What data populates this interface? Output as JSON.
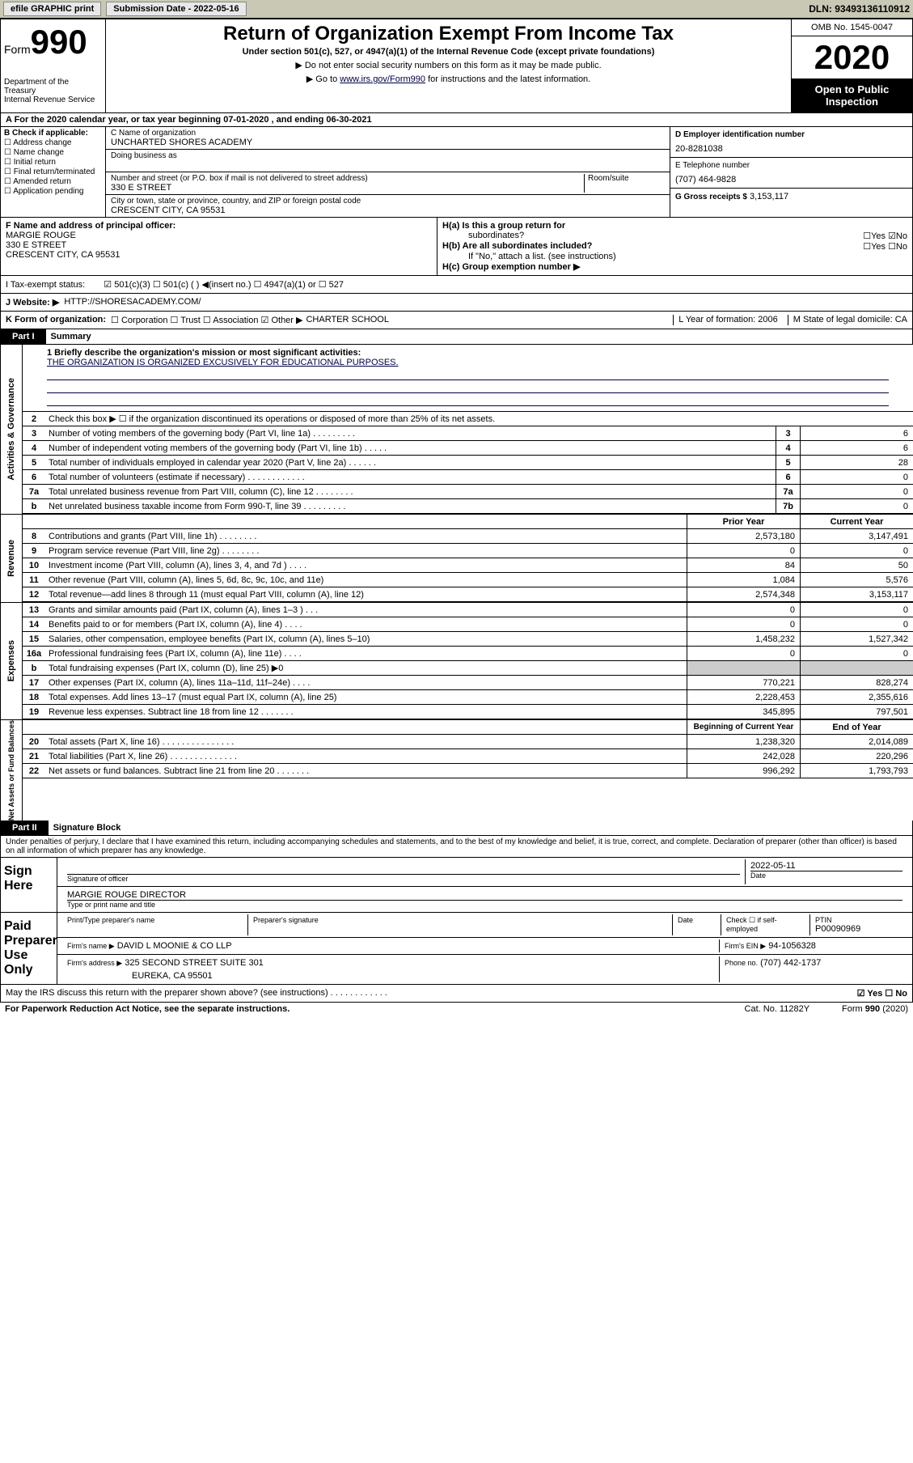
{
  "topbar": {
    "efile": "efile GRAPHIC print",
    "sub_label": "Submission Date - 2022-05-16",
    "dln": "DLN: 93493136110912"
  },
  "header": {
    "form_prefix": "Form",
    "form_num": "990",
    "dept1": "Department of the Treasury",
    "dept2": "Internal Revenue Service",
    "title": "Return of Organization Exempt From Income Tax",
    "under": "Under section 501(c), 527, or 4947(a)(1) of the Internal Revenue Code (except private foundations)",
    "note1": "▶ Do not enter social security numbers on this form as it may be made public.",
    "note2_pre": "▶ Go to ",
    "note2_link": "www.irs.gov/Form990",
    "note2_post": " for instructions and the latest information.",
    "omb": "OMB No. 1545-0047",
    "year": "2020",
    "open": "Open to Public Inspection"
  },
  "period": "A For the 2020 calendar year, or tax year beginning 07-01-2020    , and ending 06-30-2021",
  "colB": {
    "hdr": "B Check if applicable:",
    "opts": [
      "☐ Address change",
      "☐ Name change",
      "☐ Initial return",
      "☐ Final return/terminated",
      "☐ Amended return",
      "☐ Application pending"
    ]
  },
  "colC": {
    "name_lbl": "C Name of organization",
    "name": "UNCHARTED SHORES ACADEMY",
    "dba_lbl": "Doing business as",
    "addr_lbl": "Number and street (or P.O. box if mail is not delivered to street address)",
    "room_lbl": "Room/suite",
    "addr": "330 E STREET",
    "city_lbl": "City or town, state or province, country, and ZIP or foreign postal code",
    "city": "CRESCENT CITY, CA  95531"
  },
  "colD": {
    "ein_lbl": "D Employer identification number",
    "ein": "20-8281038",
    "tel_lbl": "E Telephone number",
    "tel": "(707) 464-9828",
    "gross_lbl": "G Gross receipts $",
    "gross": "3,153,117"
  },
  "f": {
    "lbl": "F  Name and address of principal officer:",
    "name": "MARGIE ROUGE",
    "addr1": "330 E STREET",
    "addr2": "CRESCENT CITY, CA  95531"
  },
  "h": {
    "a": "H(a)  Is this a group return for",
    "a2": "subordinates?",
    "ayn": "☐Yes ☑No",
    "b": "H(b)  Are all subordinates included?",
    "byn": "☐Yes ☐No",
    "bnote": "If \"No,\" attach a list. (see instructions)",
    "c": "H(c)  Group exemption number ▶"
  },
  "status": {
    "lbl": "I   Tax-exempt status:",
    "opts": "☑ 501(c)(3)   ☐ 501(c) (  ) ◀(insert no.)   ☐ 4947(a)(1) or  ☐ 527"
  },
  "j": {
    "lbl": "J   Website: ▶",
    "url": "HTTP://SHORESACADEMY.COM/"
  },
  "k": {
    "lbl": "K Form of organization:",
    "opts": "☐ Corporation  ☐ Trust  ☐ Association  ☑ Other ▶",
    "other": "CHARTER SCHOOL",
    "l": "L Year of formation: 2006",
    "m": "M State of legal domicile: CA"
  },
  "part1": "Part I",
  "part1_title": "Summary",
  "mission_lbl": "1  Briefly describe the organization's mission or most significant activities:",
  "mission": "THE ORGANIZATION IS ORGANIZED EXCUSIVELY FOR EDUCATIONAL PURPOSES.",
  "lines_ag": [
    {
      "n": "2",
      "d": "Check this box ▶ ☐ if the organization discontinued its operations or disposed of more than 25% of its net assets."
    },
    {
      "n": "3",
      "d": "Number of voting members of the governing body (Part VI, line 1a)  .    .    .    .    .    .    .    .    .",
      "b": "3",
      "v": "6"
    },
    {
      "n": "4",
      "d": "Number of independent voting members of the governing body (Part VI, line 1b)  .    .    .    .    .",
      "b": "4",
      "v": "6"
    },
    {
      "n": "5",
      "d": "Total number of individuals employed in calendar year 2020 (Part V, line 2a)  .    .    .    .    .    .",
      "b": "5",
      "v": "28"
    },
    {
      "n": "6",
      "d": "Total number of volunteers (estimate if necessary)  .    .    .    .    .    .    .    .    .    .    .    .",
      "b": "6",
      "v": "0"
    },
    {
      "n": "7a",
      "d": "Total unrelated business revenue from Part VIII, column (C), line 12  .    .    .    .    .    .    .    .",
      "b": "7a",
      "v": "0"
    },
    {
      "n": "b",
      "d": "Net unrelated business taxable income from Form 990-T, line 39  .    .    .    .    .    .    .    .    .",
      "b": "7b",
      "v": "0"
    }
  ],
  "col_hdrs": {
    "prior": "Prior Year",
    "current": "Current Year"
  },
  "revenue": [
    {
      "n": "8",
      "d": "Contributions and grants (Part VIII, line 1h)   .    .    .    .    .    .    .    .",
      "p": "2,573,180",
      "c": "3,147,491"
    },
    {
      "n": "9",
      "d": "Program service revenue (Part VIII, line 2g)   .    .    .    .    .    .    .    .",
      "p": "0",
      "c": "0"
    },
    {
      "n": "10",
      "d": "Investment income (Part VIII, column (A), lines 3, 4, and 7d )   .    .    .    .",
      "p": "84",
      "c": "50"
    },
    {
      "n": "11",
      "d": "Other revenue (Part VIII, column (A), lines 5, 6d, 8c, 9c, 10c, and 11e)",
      "p": "1,084",
      "c": "5,576"
    },
    {
      "n": "12",
      "d": "Total revenue—add lines 8 through 11 (must equal Part VIII, column (A), line 12)",
      "p": "2,574,348",
      "c": "3,153,117"
    }
  ],
  "expenses": [
    {
      "n": "13",
      "d": "Grants and similar amounts paid (Part IX, column (A), lines 1–3 )   .    .    .",
      "p": "0",
      "c": "0"
    },
    {
      "n": "14",
      "d": "Benefits paid to or for members (Part IX, column (A), line 4)   .    .    .    .",
      "p": "0",
      "c": "0"
    },
    {
      "n": "15",
      "d": "Salaries, other compensation, employee benefits (Part IX, column (A), lines 5–10)",
      "p": "1,458,232",
      "c": "1,527,342"
    },
    {
      "n": "16a",
      "d": "Professional fundraising fees (Part IX, column (A), line 11e)   .    .    .    .",
      "p": "0",
      "c": "0"
    },
    {
      "n": "b",
      "d": "Total fundraising expenses (Part IX, column (D), line 25) ▶0",
      "shade": true
    },
    {
      "n": "17",
      "d": "Other expenses (Part IX, column (A), lines 11a–11d, 11f–24e)   .    .    .    .",
      "p": "770,221",
      "c": "828,274"
    },
    {
      "n": "18",
      "d": "Total expenses. Add lines 13–17 (must equal Part IX, column (A), line 25)",
      "p": "2,228,453",
      "c": "2,355,616"
    },
    {
      "n": "19",
      "d": "Revenue less expenses. Subtract line 18 from line 12  .    .    .    .    .    .    .",
      "p": "345,895",
      "c": "797,501"
    }
  ],
  "na_hdrs": {
    "begin": "Beginning of Current Year",
    "end": "End of Year"
  },
  "netassets": [
    {
      "n": "20",
      "d": "Total assets (Part X, line 16)  .    .    .    .    .    .    .    .    .    .    .    .    .    .    .",
      "p": "1,238,320",
      "c": "2,014,089"
    },
    {
      "n": "21",
      "d": "Total liabilities (Part X, line 26)  .    .    .    .    .    .    .    .    .    .    .    .    .    .",
      "p": "242,028",
      "c": "220,296"
    },
    {
      "n": "22",
      "d": "Net assets or fund balances. Subtract line 21 from line 20  .    .    .    .    .    .    .",
      "p": "996,292",
      "c": "1,793,793"
    }
  ],
  "sidelabels": {
    "ag": "Activities & Governance",
    "rev": "Revenue",
    "exp": "Expenses",
    "na": "Net Assets or Fund Balances"
  },
  "part2": "Part II",
  "part2_title": "Signature Block",
  "perjury": "Under penalties of perjury, I declare that I have examined this return, including accompanying schedules and statements, and to the best of my knowledge and belief, it is true, correct, and complete. Declaration of preparer (other than officer) is based on all information of which preparer has any knowledge.",
  "sign": {
    "label": "Sign Here",
    "sig_lbl": "Signature of officer",
    "date_lbl": "Date",
    "date": "2022-05-11",
    "name": "MARGIE ROUGE  DIRECTOR",
    "name_lbl": "Type or print name and title"
  },
  "paid": {
    "label": "Paid Preparer Use Only",
    "hdr1": "Print/Type preparer's name",
    "hdr2": "Preparer's signature",
    "hdr3": "Date",
    "hdr4": "Check ☐ if self-employed",
    "ptin_lbl": "PTIN",
    "ptin": "P00090969",
    "firm_lbl": "Firm's name    ▶",
    "firm": "DAVID L MOONIE & CO LLP",
    "ein_lbl": "Firm's EIN ▶",
    "ein": "94-1056328",
    "addr_lbl": "Firm's address ▶",
    "addr": "325 SECOND STREET SUITE 301",
    "addr2": "EUREKA, CA  95501",
    "phone_lbl": "Phone no.",
    "phone": "(707) 442-1737"
  },
  "discuss": "May the IRS discuss this return with the preparer shown above? (see instructions)   .    .    .    .    .    .    .    .    .    .    .    .",
  "discuss_yn": "☑ Yes ☐ No",
  "footer_l": "For Paperwork Reduction Act Notice, see the separate instructions.",
  "footer_m": "Cat. No. 11282Y",
  "footer_r": "Form 990 (2020)"
}
